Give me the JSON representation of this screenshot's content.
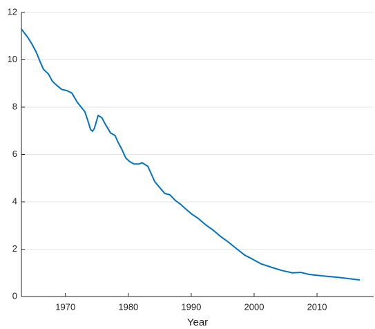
{
  "chart_data": {
    "type": "line",
    "x_label": "Year",
    "x": [
      1963.0,
      1964.0,
      1964.7,
      1965.4,
      1966.0,
      1966.5,
      1967.3,
      1967.9,
      1968.7,
      1969.4,
      1970.2,
      1971.0,
      1971.9,
      1972.5,
      1973.1,
      1973.6,
      1974.0,
      1974.3,
      1974.6,
      1975.2,
      1975.8,
      1976.4,
      1977.2,
      1977.9,
      1978.3,
      1979.0,
      1979.6,
      1980.2,
      1980.9,
      1981.7,
      1982.2,
      1983.1,
      1983.7,
      1984.2,
      1985.0,
      1985.8,
      1986.6,
      1987.5,
      1988.3,
      1989.1,
      1990.0,
      1991.1,
      1992.2,
      1993.5,
      1994.6,
      1995.9,
      1997.3,
      1998.5,
      1999.6,
      2001.1,
      2002.8,
      2004.4,
      2006.1,
      2007.4,
      2008.8,
      2011.0,
      2013.7,
      2016.8
    ],
    "series": [
      {
        "color": "#0072bd",
        "values": [
          11.3,
          10.95,
          10.65,
          10.3,
          9.9,
          9.6,
          9.4,
          9.1,
          8.9,
          8.75,
          8.7,
          8.6,
          8.2,
          8.0,
          7.8,
          7.4,
          7.05,
          6.98,
          7.1,
          7.65,
          7.55,
          7.25,
          6.9,
          6.8,
          6.55,
          6.2,
          5.85,
          5.7,
          5.6,
          5.6,
          5.65,
          5.5,
          5.15,
          4.85,
          4.6,
          4.35,
          4.3,
          4.05,
          3.9,
          3.7,
          3.5,
          3.3,
          3.05,
          2.8,
          2.55,
          2.3,
          2.0,
          1.75,
          1.6,
          1.38,
          1.23,
          1.1,
          1.0,
          1.02,
          0.93,
          0.87,
          0.8,
          0.7
        ]
      }
    ],
    "xlim": [
      1963,
      2019
    ],
    "xticks": [
      1970,
      1980,
      1990,
      2000,
      2010
    ],
    "ylim": [
      0,
      12
    ],
    "yticks": [
      0,
      2,
      4,
      6,
      8,
      10,
      12
    ],
    "grid": true
  }
}
